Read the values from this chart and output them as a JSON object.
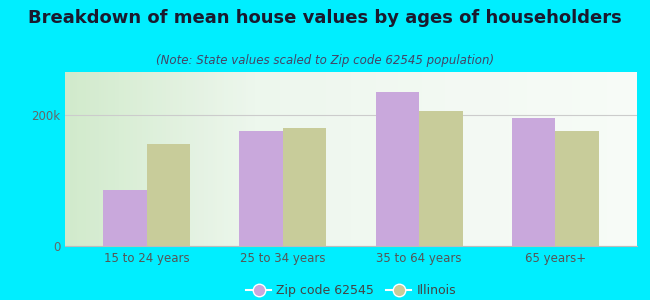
{
  "title": "Breakdown of mean house values by ages of householders",
  "subtitle": "(Note: State values scaled to Zip code 62545 population)",
  "categories": [
    "15 to 24 years",
    "25 to 34 years",
    "35 to 64 years",
    "65 years+"
  ],
  "zip_values": [
    85000,
    175000,
    235000,
    195000
  ],
  "il_values": [
    155000,
    180000,
    205000,
    175000
  ],
  "zip_color": "#c9a8dc",
  "il_color": "#c8cc9a",
  "background_outer": "#00eeff",
  "ytick_labels": [
    "0",
    "200k"
  ],
  "ytick_values": [
    0,
    200000
  ],
  "ylim": [
    0,
    265000
  ],
  "legend_zip_label": "Zip code 62545",
  "legend_il_label": "Illinois",
  "bar_width": 0.32,
  "title_fontsize": 13,
  "subtitle_fontsize": 8.5,
  "tick_fontsize": 8.5,
  "legend_fontsize": 9
}
